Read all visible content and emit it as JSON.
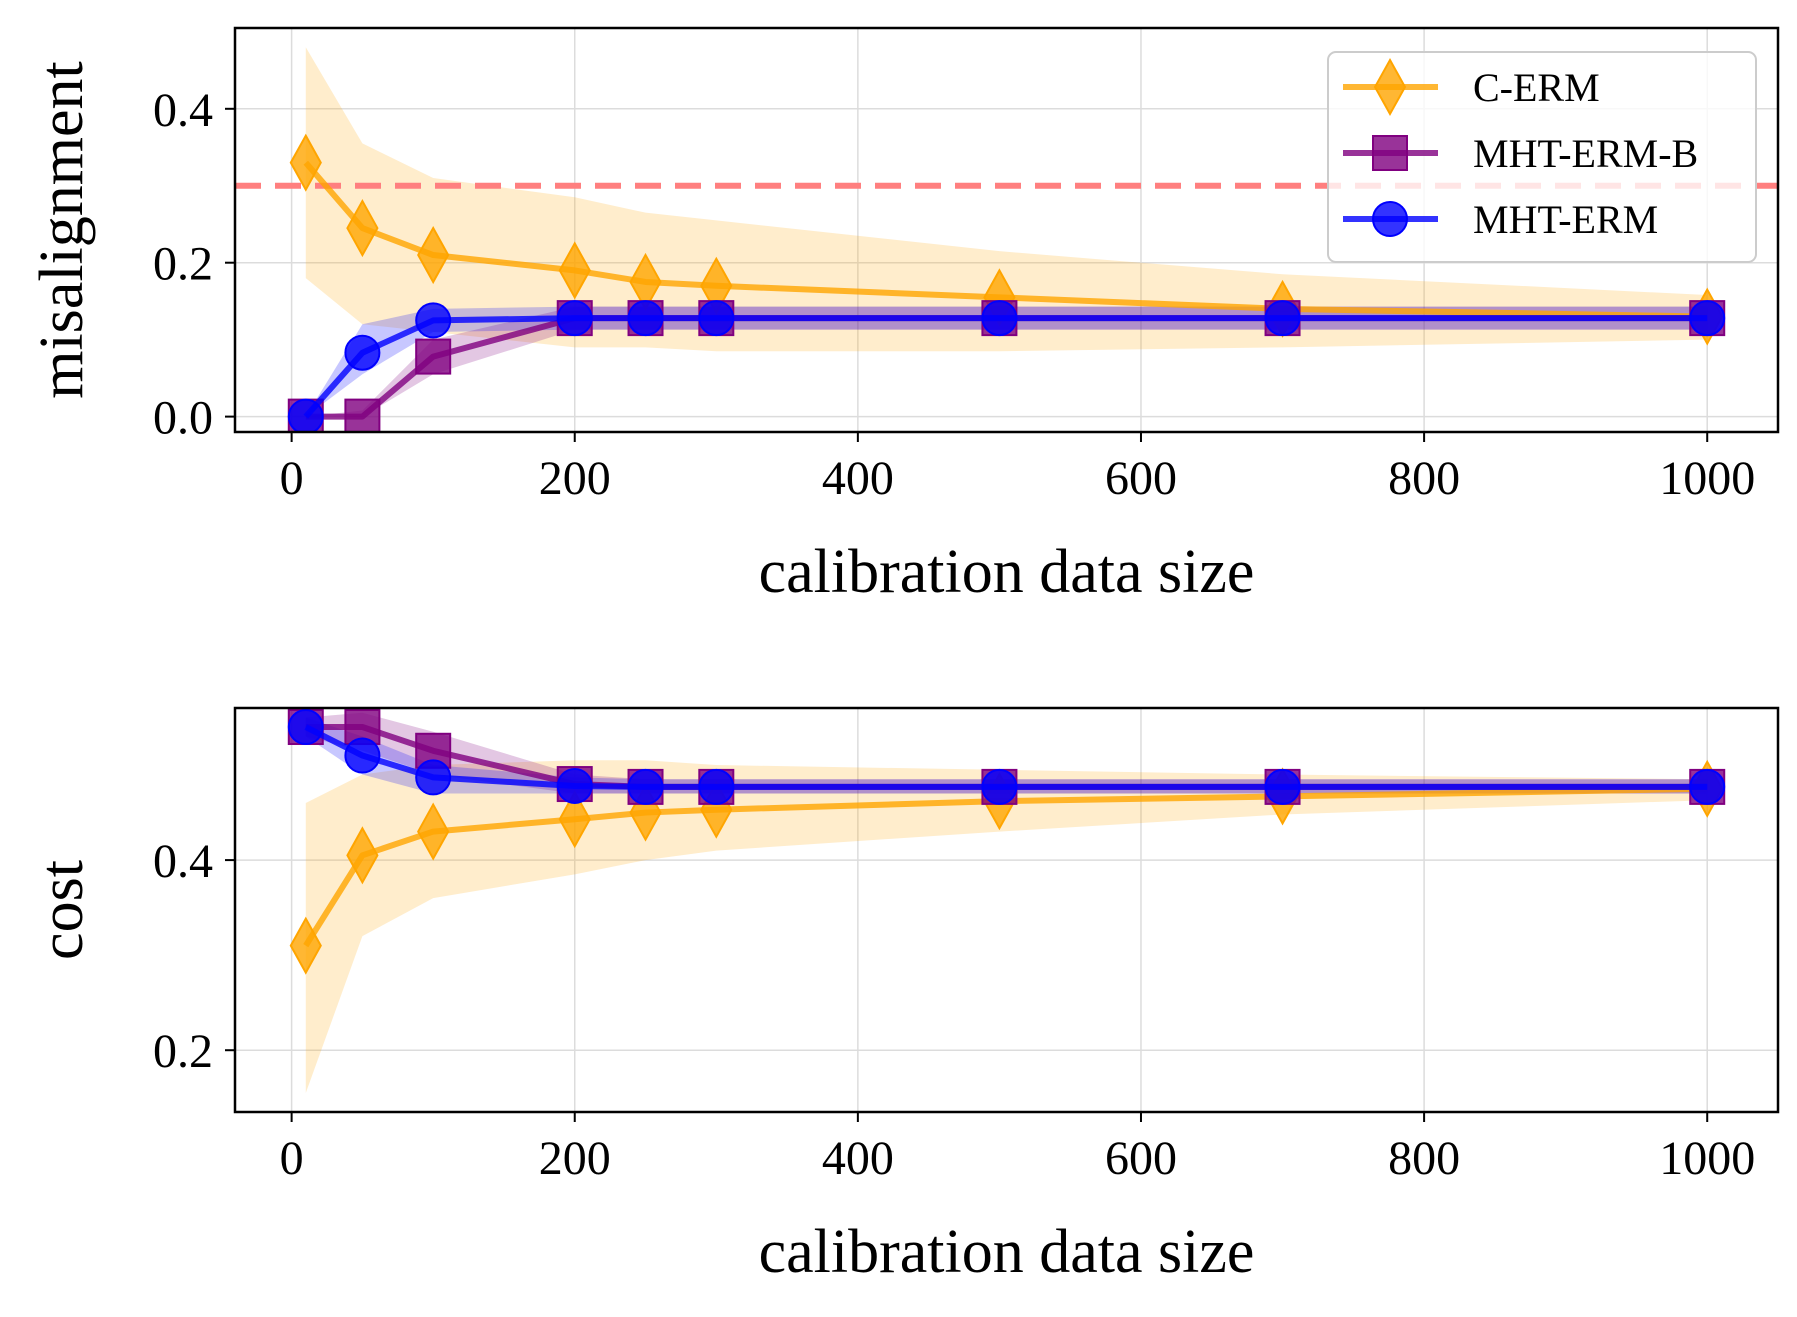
{
  "chart_data": [
    {
      "type": "line",
      "xlabel": "calibration data size",
      "ylabel": "misalignment",
      "xlim": [
        -40,
        1050
      ],
      "ylim": [
        -0.02,
        0.505
      ],
      "xticks": [
        0,
        200,
        400,
        600,
        800,
        1000
      ],
      "xtick_labels": [
        "0",
        "200",
        "400",
        "600",
        "800",
        "1000"
      ],
      "yticks": [
        0.0,
        0.2,
        0.4
      ],
      "ytick_labels": [
        "0.0",
        "0.2",
        "0.4"
      ],
      "grid": true,
      "legend": "top-right",
      "x": [
        10,
        50,
        100,
        200,
        250,
        300,
        500,
        700,
        1000
      ],
      "reference_line": {
        "y": 0.3,
        "style": "dashed",
        "color": "#ff7f7f"
      },
      "series": [
        {
          "name": "C-ERM",
          "color": "#ffa500",
          "marker": "diamond",
          "values": [
            0.33,
            0.245,
            0.21,
            0.19,
            0.175,
            0.17,
            0.155,
            0.14,
            0.13
          ],
          "lower": [
            0.18,
            0.12,
            0.11,
            0.09,
            0.09,
            0.085,
            0.085,
            0.09,
            0.1
          ],
          "upper": [
            0.48,
            0.355,
            0.31,
            0.285,
            0.265,
            0.255,
            0.215,
            0.185,
            0.158
          ]
        },
        {
          "name": "MHT-ERM-B",
          "color": "#800080",
          "marker": "square",
          "values": [
            0.0,
            0.0,
            0.078,
            0.128,
            0.128,
            0.128,
            0.128,
            0.128,
            0.128
          ],
          "lower": [
            0.0,
            0.0,
            0.055,
            0.113,
            0.113,
            0.113,
            0.113,
            0.113,
            0.113
          ],
          "upper": [
            0.0,
            0.008,
            0.1,
            0.143,
            0.143,
            0.143,
            0.143,
            0.143,
            0.143
          ]
        },
        {
          "name": "MHT-ERM",
          "color": "#0000ff",
          "marker": "circle",
          "values": [
            0.0,
            0.083,
            0.125,
            0.128,
            0.128,
            0.128,
            0.128,
            0.128,
            0.128
          ],
          "lower": [
            0.0,
            0.055,
            0.11,
            0.113,
            0.113,
            0.113,
            0.113,
            0.113,
            0.113
          ],
          "upper": [
            0.0,
            0.12,
            0.14,
            0.143,
            0.143,
            0.143,
            0.143,
            0.143,
            0.143
          ]
        }
      ]
    },
    {
      "type": "line",
      "xlabel": "calibration data size",
      "ylabel": "cost",
      "xlim": [
        -40,
        1050
      ],
      "ylim": [
        0.135,
        0.56
      ],
      "xticks": [
        0,
        200,
        400,
        600,
        800,
        1000
      ],
      "xtick_labels": [
        "0",
        "200",
        "400",
        "600",
        "800",
        "1000"
      ],
      "yticks": [
        0.2,
        0.4
      ],
      "ytick_labels": [
        "0.2",
        "0.4"
      ],
      "grid": true,
      "x": [
        10,
        50,
        100,
        200,
        250,
        300,
        500,
        700,
        1000
      ],
      "series": [
        {
          "name": "C-ERM",
          "color": "#ffa500",
          "marker": "diamond",
          "values": [
            0.31,
            0.405,
            0.43,
            0.443,
            0.45,
            0.453,
            0.462,
            0.467,
            0.475
          ],
          "lower": [
            0.155,
            0.32,
            0.36,
            0.385,
            0.4,
            0.41,
            0.43,
            0.448,
            0.463
          ],
          "upper": [
            0.46,
            0.49,
            0.5,
            0.505,
            0.505,
            0.5,
            0.495,
            0.49,
            0.485
          ]
        },
        {
          "name": "MHT-ERM-B",
          "color": "#800080",
          "marker": "square",
          "values": [
            0.54,
            0.54,
            0.515,
            0.48,
            0.477,
            0.477,
            0.477,
            0.477,
            0.477
          ],
          "lower": [
            0.53,
            0.515,
            0.49,
            0.47,
            0.47,
            0.47,
            0.47,
            0.47,
            0.47
          ],
          "upper": [
            0.55,
            0.555,
            0.535,
            0.49,
            0.485,
            0.485,
            0.485,
            0.485,
            0.485
          ]
        },
        {
          "name": "MHT-ERM",
          "color": "#0000ff",
          "marker": "circle",
          "values": [
            0.54,
            0.51,
            0.487,
            0.478,
            0.477,
            0.477,
            0.477,
            0.477,
            0.477
          ],
          "lower": [
            0.53,
            0.49,
            0.47,
            0.47,
            0.47,
            0.47,
            0.47,
            0.47,
            0.47
          ],
          "upper": [
            0.55,
            0.53,
            0.5,
            0.487,
            0.485,
            0.485,
            0.485,
            0.485,
            0.485
          ]
        }
      ]
    }
  ]
}
